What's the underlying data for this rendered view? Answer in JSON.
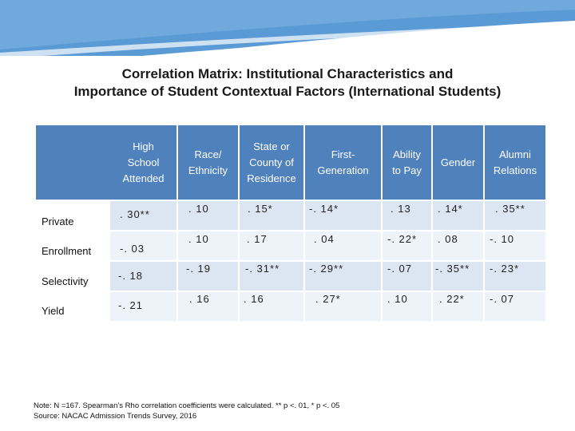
{
  "slide": {
    "title_line1": "Correlation Matrix: Institutional Characteristics and",
    "title_line2": "Importance of Student Contextual Factors (International Students)"
  },
  "table": {
    "headers": [
      [
        "High",
        "School",
        "Attended"
      ],
      [
        "Race/",
        "Ethnicity"
      ],
      [
        "State or",
        "County of",
        "Residence"
      ],
      [
        "First-",
        "Generation"
      ],
      [
        "Ability",
        "to Pay"
      ],
      [
        "Gender"
      ],
      [
        "Alumni",
        "Relations"
      ]
    ],
    "row_labels": [
      "Private",
      "Enrollment",
      "Selectivity",
      "Yield"
    ],
    "rows": [
      [
        ". 30**",
        ". 10",
        ". 15*",
        "-. 14*",
        ". 13",
        ". 14*",
        ". 35**"
      ],
      [
        "-. 03",
        ". 10",
        ". 17",
        ". 04",
        "-. 22*",
        ". 08",
        "-. 10"
      ],
      [
        "-. 18",
        "-. 19",
        "-. 31**",
        "-. 29**",
        "-. 07",
        "-. 35**",
        "-. 23*"
      ],
      [
        "-. 21",
        ". 16",
        ". 16",
        ". 27*",
        ". 10",
        ". 22*",
        "-. 07"
      ]
    ]
  },
  "notes": {
    "line1": "Note: N =167. Spearman’s Rho correlation coefficients were calculated. ** p <. 01, * p <. 05",
    "line2": "Source: NACAC Admission Trends Survey, 2016"
  },
  "colors": {
    "header": "#4f81bd",
    "band_dark": "#dce6f2",
    "band_light": "#eef3f9",
    "banner": "#5b9bd5"
  }
}
